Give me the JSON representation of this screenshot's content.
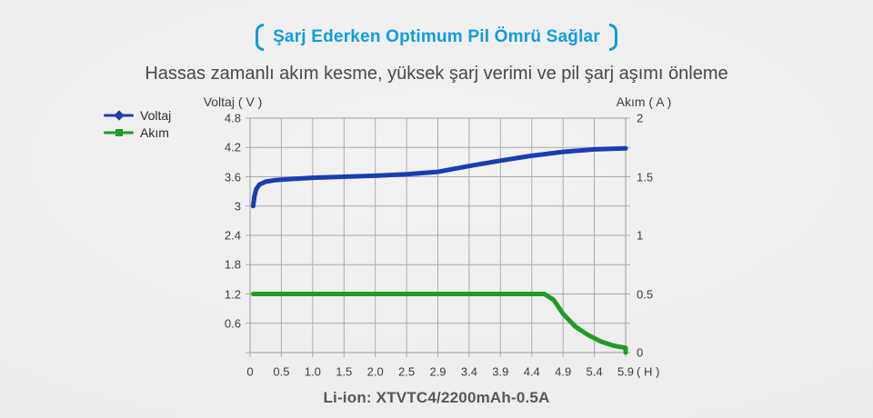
{
  "header": {
    "title": "Şarj Ederken Optimum Pil Ömrü Sağlar",
    "subtitle": "Hassas zamanlı akım kesme, yüksek şarj verimi ve pil şarj aşımı önleme"
  },
  "footer": {
    "caption": "Li-ion: XTVTC4/2200mAh-0.5A"
  },
  "colors": {
    "title_blue": "#0f9cdf",
    "voltage_line": "#1b3cb3",
    "current_line": "#1f9c26",
    "grid": "#ababab",
    "grid_border": "#9b9b9b"
  },
  "chart_data": {
    "type": "line",
    "title": "Şarj Ederken Optimum Pil Ömrü Sağlar",
    "ylabel_left": "Voltaj ( V )",
    "ylabel_right": "Akım ( A )",
    "x_unit": "( H )",
    "grid": true,
    "legend_position": "top-left",
    "x_ticks": [
      0,
      0.5,
      1.0,
      1.5,
      2.0,
      2.5,
      2.9,
      3.4,
      3.9,
      4.4,
      4.9,
      5.4,
      5.9
    ],
    "x_tick_labels": [
      "0",
      "0.5",
      "1.0",
      "1.5",
      "2.0",
      "2.5",
      "2.9",
      "3.4",
      "3.9",
      "4.4",
      "4.9",
      "5.4",
      "5.9"
    ],
    "left_axis": {
      "min": 0,
      "max": 4.8,
      "ticks": [
        4.8,
        4.2,
        3.6,
        3,
        2.4,
        1.8,
        1.2,
        0.6
      ],
      "tick_labels": [
        "4.8",
        "4.2",
        "3.6",
        "3",
        "2.4",
        "1.8",
        "1.2",
        "0.6"
      ]
    },
    "right_axis": {
      "min": 0,
      "max": 2,
      "ticks": [
        2,
        1.5,
        1,
        0.5,
        0
      ],
      "tick_labels": [
        "2",
        "1.5",
        "1",
        "0.5",
        "0"
      ]
    },
    "series": [
      {
        "name": "Voltaj",
        "axis": "left",
        "color": "#1b3cb3",
        "marker": "diamond",
        "points": [
          [
            0.05,
            3.0
          ],
          [
            0.07,
            3.2
          ],
          [
            0.1,
            3.35
          ],
          [
            0.15,
            3.44
          ],
          [
            0.25,
            3.5
          ],
          [
            0.4,
            3.53
          ],
          [
            0.6,
            3.55
          ],
          [
            1.0,
            3.58
          ],
          [
            1.5,
            3.6
          ],
          [
            2.0,
            3.62
          ],
          [
            2.5,
            3.65
          ],
          [
            2.9,
            3.7
          ],
          [
            3.4,
            3.82
          ],
          [
            3.9,
            3.93
          ],
          [
            4.4,
            4.03
          ],
          [
            4.9,
            4.11
          ],
          [
            5.4,
            4.16
          ],
          [
            5.9,
            4.18
          ]
        ]
      },
      {
        "name": "Akım",
        "axis": "right",
        "color": "#1f9c26",
        "marker": "square",
        "points": [
          [
            0.05,
            0.5
          ],
          [
            0.5,
            0.5
          ],
          [
            1.0,
            0.5
          ],
          [
            1.5,
            0.5
          ],
          [
            2.0,
            0.5
          ],
          [
            2.5,
            0.5
          ],
          [
            2.9,
            0.5
          ],
          [
            3.4,
            0.5
          ],
          [
            3.9,
            0.5
          ],
          [
            4.3,
            0.5
          ],
          [
            4.6,
            0.5
          ],
          [
            4.75,
            0.45
          ],
          [
            4.9,
            0.33
          ],
          [
            5.1,
            0.22
          ],
          [
            5.3,
            0.15
          ],
          [
            5.5,
            0.095
          ],
          [
            5.7,
            0.06
          ],
          [
            5.85,
            0.045
          ],
          [
            5.9,
            0.04
          ],
          [
            5.9,
            0.0
          ]
        ]
      }
    ]
  }
}
